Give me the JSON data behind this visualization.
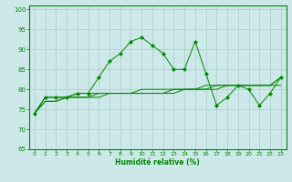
{
  "xlabel": "Humidité relative (%)",
  "bg_color": "#cce8e8",
  "grid_color": "#aacccc",
  "line_color": "#008800",
  "marker_color": "#008800",
  "xlim": [
    -0.5,
    23.5
  ],
  "ylim": [
    65,
    101
  ],
  "yticks": [
    65,
    70,
    75,
    80,
    85,
    90,
    95,
    100
  ],
  "xticks": [
    0,
    1,
    2,
    3,
    4,
    5,
    6,
    7,
    8,
    9,
    10,
    11,
    12,
    13,
    14,
    15,
    16,
    17,
    18,
    19,
    20,
    21,
    22,
    23
  ],
  "series1_x": [
    0,
    1,
    2,
    3,
    4,
    5,
    6,
    7,
    8,
    9,
    10,
    11,
    12,
    13,
    14,
    15,
    16,
    17,
    18,
    19,
    20,
    21,
    22,
    23
  ],
  "series1_y": [
    74,
    78,
    78,
    78,
    79,
    79,
    83,
    87,
    89,
    92,
    93,
    91,
    89,
    85,
    85,
    92,
    84,
    76,
    78,
    81,
    80,
    76,
    79,
    83
  ],
  "series2_y": [
    74,
    77,
    77,
    78,
    78,
    78,
    78,
    79,
    79,
    79,
    79,
    79,
    79,
    80,
    80,
    80,
    80,
    81,
    81,
    81,
    81,
    81,
    81,
    83
  ],
  "series3_y": [
    74,
    77,
    77,
    78,
    78,
    78,
    79,
    79,
    79,
    79,
    80,
    80,
    80,
    80,
    80,
    80,
    81,
    81,
    81,
    81,
    81,
    81,
    81,
    83
  ],
  "series4_y": [
    74,
    78,
    78,
    78,
    79,
    79,
    79,
    79,
    79,
    79,
    79,
    79,
    79,
    79,
    80,
    80,
    80,
    80,
    81,
    81,
    81,
    81,
    81,
    81
  ]
}
